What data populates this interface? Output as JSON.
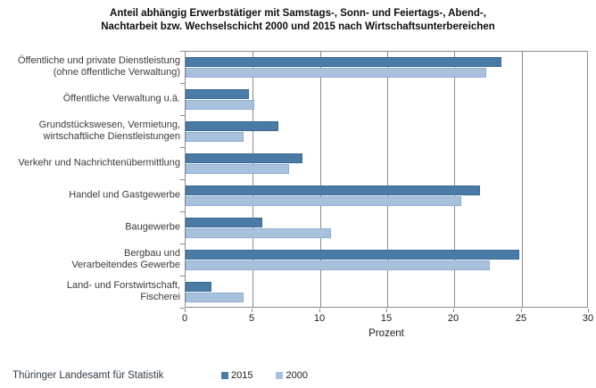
{
  "title": {
    "line1": "Anteil abhängig Erwerbstätiger mit Samstags-, Sonn- und Feiertags-, Abend-,",
    "line2": "Nachtarbeit bzw. Wechselschicht 2000 und 2015 nach Wirtschaftsunterbereichen"
  },
  "footer": {
    "source": "Thüringer Landesamt für Statistik"
  },
  "legend": [
    {
      "label": "2015",
      "color": "#4a7ba6"
    },
    {
      "label": "2000",
      "color": "#a8c2de"
    }
  ],
  "colors": {
    "series_2015": "#4a7ba6",
    "series_2000": "#a8c2de",
    "grid": "#8c8c8c",
    "text": "#3a3a3a"
  },
  "chart_data": {
    "type": "bar",
    "orientation": "horizontal",
    "title": "Anteil abhängig Erwerbstätiger mit Samstags-, Sonn- und Feiertags-, Abend-, Nachtarbeit bzw. Wechselschicht 2000 und 2015 nach Wirtschaftsunterbereichen",
    "categories": [
      [
        "Öffentliche und private Dienstleistung",
        "(ohne öffentliche Verwaltung)"
      ],
      [
        "Öffentliche Verwaltung u.ä."
      ],
      [
        "Grundstückswesen, Vermietung,",
        "wirtschaftliche Dienstleistungen"
      ],
      [
        "Verkehr und Nachrichtenübermittlung"
      ],
      [
        "Handel und Gastgewerbe"
      ],
      [
        "Baugewerbe"
      ],
      [
        "Bergbau und",
        "Verarbeitendes Gewerbe"
      ],
      [
        "Land- und Forstwirtschaft,",
        "Fischerei"
      ]
    ],
    "series": [
      {
        "name": "2015",
        "color": "#4a7ba6",
        "values": [
          23.5,
          4.7,
          6.9,
          8.7,
          21.9,
          5.7,
          24.8,
          1.9
        ]
      },
      {
        "name": "2000",
        "color": "#a8c2de",
        "values": [
          22.4,
          5.1,
          4.3,
          7.7,
          20.5,
          10.8,
          22.6,
          4.3
        ]
      }
    ],
    "xlabel": "Prozent",
    "ylabel": "",
    "xlim": [
      0,
      30
    ],
    "xticks": [
      0,
      5,
      10,
      15,
      20,
      25,
      30
    ],
    "grid": true,
    "legend_position": "bottom"
  }
}
